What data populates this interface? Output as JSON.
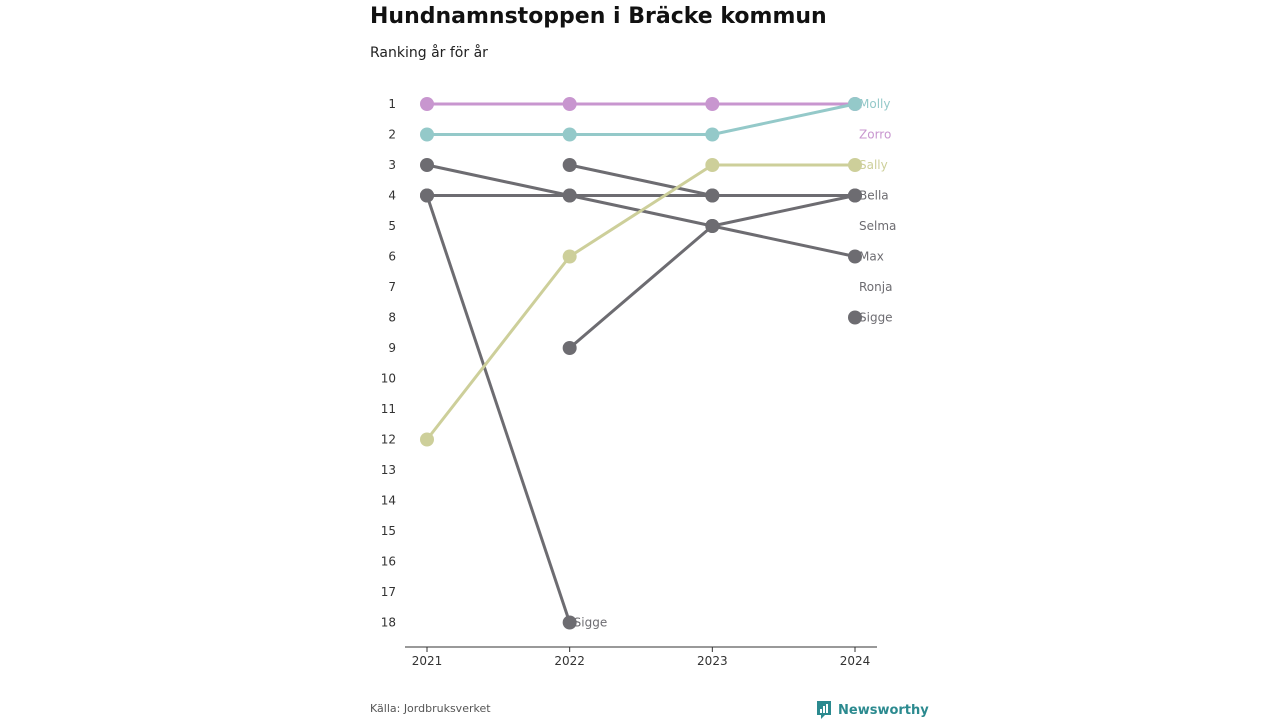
{
  "title": "Hundnamnstoppen i Bräcke kommun",
  "subtitle": "Ranking år för år",
  "source": "Källa: Jordbruksverket",
  "brand": {
    "name": "Newsworthy",
    "icon": "newsworthy-logo-icon",
    "color": "#2b8a8f"
  },
  "chart_data": {
    "type": "line",
    "subtype": "bump",
    "x": [
      2021,
      2022,
      2023,
      2024
    ],
    "y_ticks": [
      1,
      2,
      3,
      4,
      5,
      6,
      7,
      8,
      9,
      10,
      11,
      12,
      13,
      14,
      15,
      16,
      17,
      18
    ],
    "y_range": [
      1,
      18
    ],
    "y_inverted": true,
    "grid": false,
    "end_labels": [
      {
        "label": "Molly",
        "rank": 1,
        "color": "#94c9c9"
      },
      {
        "label": "Zorro",
        "rank": 2,
        "color": "#c896cf"
      },
      {
        "label": "Sally",
        "rank": 3,
        "color": "#cdcf9a"
      },
      {
        "label": "Bella",
        "rank": 4,
        "color": "#6d6c71"
      },
      {
        "label": "Selma",
        "rank": 5,
        "color": "#6d6c71"
      },
      {
        "label": "Max",
        "rank": 6,
        "color": "#6d6c71"
      },
      {
        "label": "Ronja",
        "rank": 7,
        "color": "#6d6c71"
      },
      {
        "label": "Sigge",
        "rank": 8,
        "color": "#6d6c71"
      }
    ],
    "point_labels": [
      {
        "label": "Sigge",
        "x": 2022,
        "rank": 18,
        "color": "#6d6c71"
      }
    ],
    "series": [
      {
        "color": "#c896cf",
        "points": [
          [
            2021,
            1
          ],
          [
            2022,
            1
          ],
          [
            2023,
            1
          ],
          [
            2024,
            1
          ]
        ]
      },
      {
        "color": "#94c9c9",
        "points": [
          [
            2021,
            2
          ],
          [
            2022,
            2
          ],
          [
            2023,
            2
          ],
          [
            2024,
            1
          ]
        ]
      },
      {
        "color": "#cdcf9a",
        "points": [
          [
            2021,
            12
          ],
          [
            2022,
            6
          ],
          [
            2023,
            3
          ],
          [
            2024,
            3
          ]
        ]
      },
      {
        "color": "#6d6c71",
        "points": [
          [
            2021,
            3
          ],
          [
            2022,
            4
          ],
          [
            2023,
            5
          ],
          [
            2024,
            6
          ]
        ]
      },
      {
        "color": "#6d6c71",
        "points": [
          [
            2021,
            4
          ],
          [
            2022,
            4
          ],
          [
            2023,
            4
          ],
          [
            2024,
            4
          ]
        ]
      },
      {
        "color": "#6d6c71",
        "points": [
          [
            2022,
            3
          ],
          [
            2023,
            4
          ]
        ]
      },
      {
        "color": "#6d6c71",
        "points": [
          [
            2022,
            9
          ],
          [
            2023,
            5
          ],
          [
            2024,
            4
          ]
        ]
      },
      {
        "color": "#6d6c71",
        "points": [
          [
            2021,
            4
          ],
          [
            2022,
            18
          ]
        ]
      },
      {
        "color": "#6d6c71",
        "points": [
          [
            2024,
            8
          ]
        ]
      }
    ]
  }
}
